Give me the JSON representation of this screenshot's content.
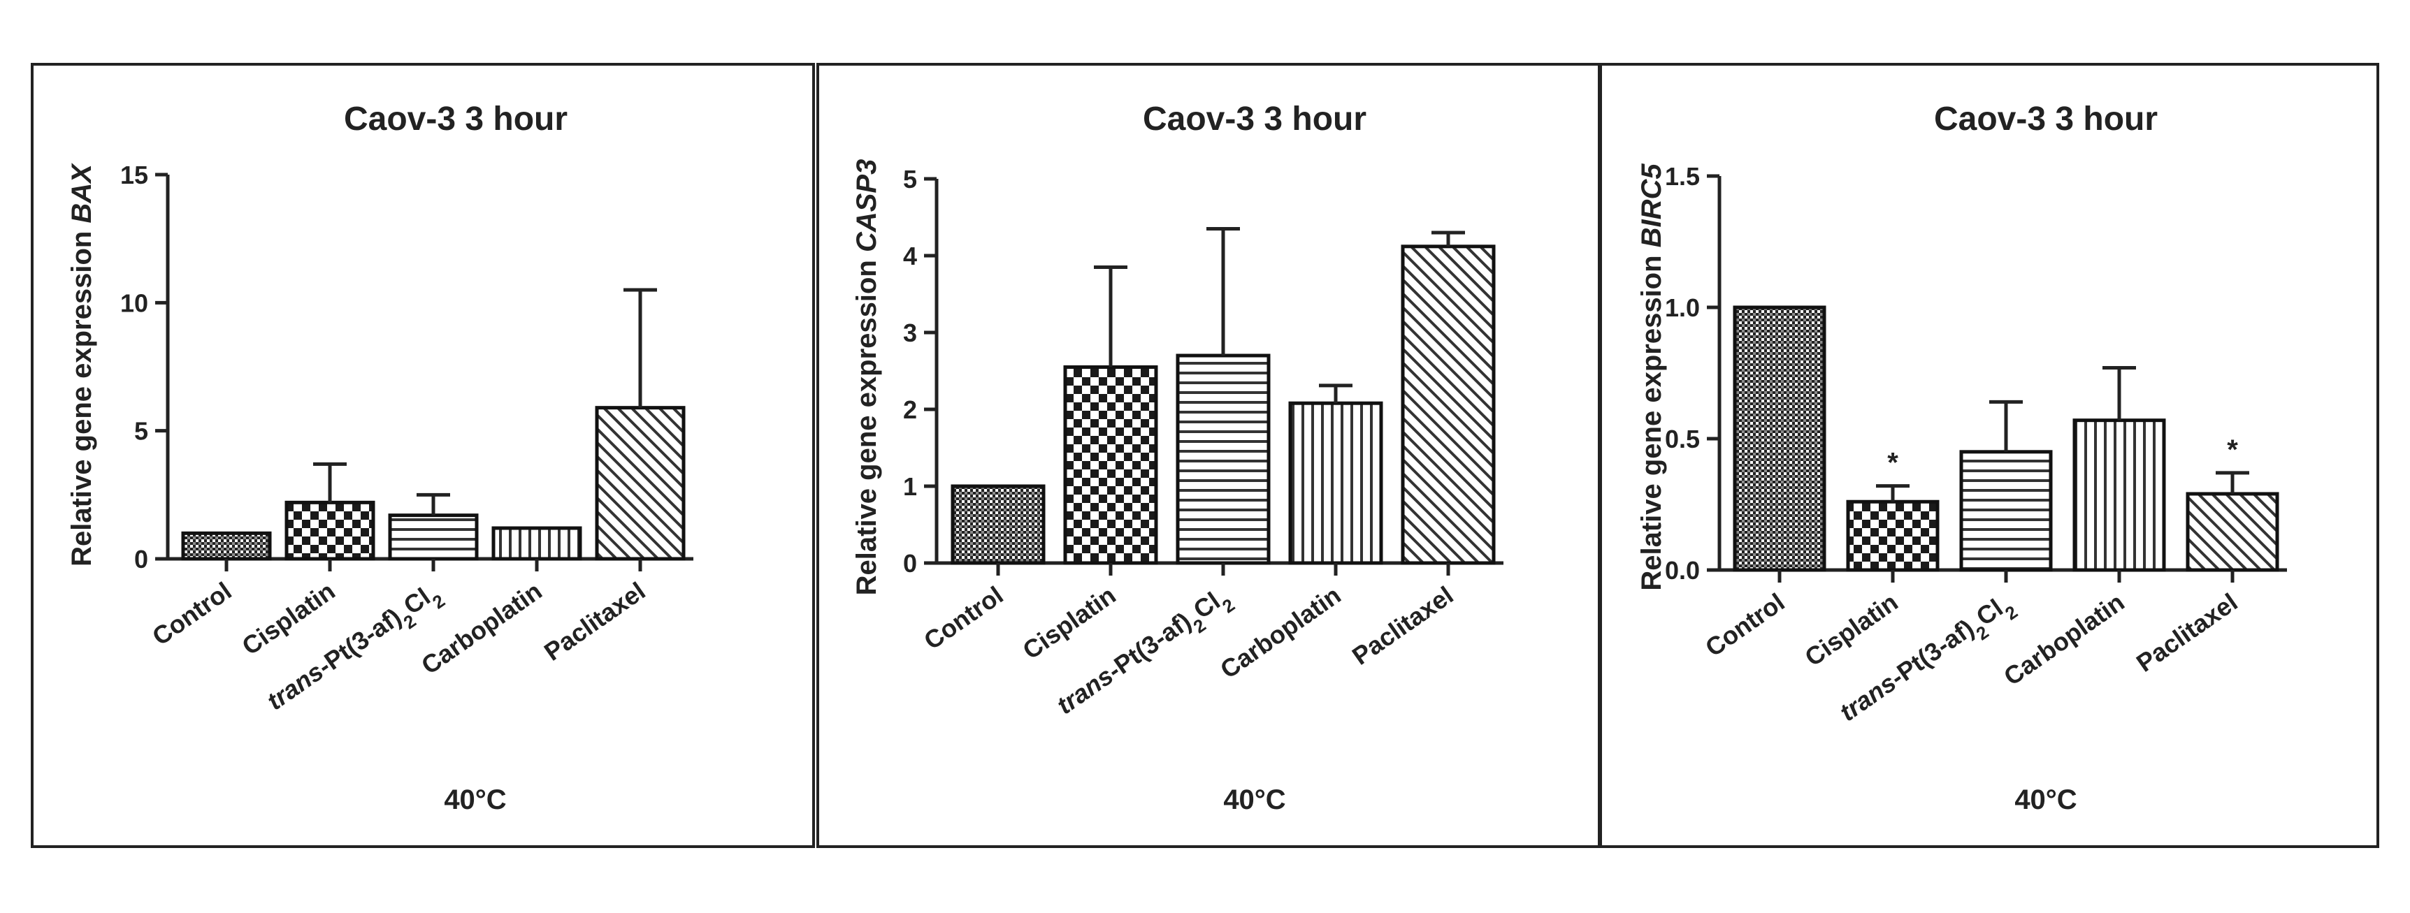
{
  "colors": {
    "ink": "#222222",
    "bar_outline": "#111111",
    "background": "#ffffff"
  },
  "chart_data": [
    {
      "type": "bar",
      "title": "Caov-3 3 hour",
      "ylabel_prefix": "Relative gene expression ",
      "ylabel_gene": "BAX",
      "xlabel": "40°C",
      "categories": [
        "Control",
        "Cisplatin",
        "trans-Pt(3-af)2Cl2",
        "Carboplatin",
        "Paclitaxel"
      ],
      "category_parts": [
        [
          "Control"
        ],
        [
          "Cisplatin"
        ],
        [
          "trans",
          "-Pt(3-af)",
          "2",
          "Cl",
          "2"
        ],
        [
          "Carboplatin"
        ],
        [
          "Paclitaxel"
        ]
      ],
      "patterns": [
        "dense",
        "checker",
        "hstripe",
        "vstripe",
        "diag"
      ],
      "values": [
        1.0,
        2.2,
        1.7,
        1.2,
        5.9
      ],
      "errors": [
        0.0,
        1.5,
        0.8,
        0.0,
        4.6
      ],
      "significance": [
        "",
        "",
        "",
        "",
        ""
      ],
      "ylim": [
        0,
        15
      ],
      "yticks": [
        0,
        5,
        10,
        15
      ],
      "ytick_labels": [
        "0",
        "5",
        "10",
        "15"
      ]
    },
    {
      "type": "bar",
      "title": "Caov-3 3 hour",
      "ylabel_prefix": "Relative gene expression ",
      "ylabel_gene": "CASP3",
      "xlabel": "40°C",
      "categories": [
        "Control",
        "Cisplatin",
        "trans-Pt(3-af)2Cl2",
        "Carboplatin",
        "Paclitaxel"
      ],
      "category_parts": [
        [
          "Control"
        ],
        [
          "Cisplatin"
        ],
        [
          "trans",
          "-Pt(3-af)",
          "2",
          "Cl",
          "2"
        ],
        [
          "Carboplatin"
        ],
        [
          "Paclitaxel"
        ]
      ],
      "patterns": [
        "dense",
        "checker",
        "hstripe",
        "vstripe",
        "diag"
      ],
      "values": [
        1.0,
        2.55,
        2.7,
        2.08,
        4.12
      ],
      "errors": [
        0.0,
        1.3,
        1.65,
        0.23,
        0.18
      ],
      "significance": [
        "",
        "",
        "",
        "",
        ""
      ],
      "ylim": [
        0,
        5
      ],
      "yticks": [
        0,
        1,
        2,
        3,
        4,
        5
      ],
      "ytick_labels": [
        "0",
        "1",
        "2",
        "3",
        "4",
        "5"
      ]
    },
    {
      "type": "bar",
      "title": "Caov-3 3 hour",
      "ylabel_prefix": "Relative gene expression ",
      "ylabel_gene": "BIRC5",
      "xlabel": "40°C",
      "categories": [
        "Control",
        "Cisplatin",
        "trans-Pt(3-af)2Cl2",
        "Carboplatin",
        "Paclitaxel"
      ],
      "category_parts": [
        [
          "Control"
        ],
        [
          "Cisplatin"
        ],
        [
          "trans",
          "-Pt(3-af)",
          "2",
          "Cl",
          "2"
        ],
        [
          "Carboplatin"
        ],
        [
          "Paclitaxel"
        ]
      ],
      "patterns": [
        "dense",
        "checker",
        "hstripe",
        "vstripe",
        "diag"
      ],
      "values": [
        1.0,
        0.26,
        0.45,
        0.57,
        0.29
      ],
      "errors": [
        0.0,
        0.06,
        0.19,
        0.2,
        0.08
      ],
      "significance": [
        "",
        "*",
        "",
        "",
        "*"
      ],
      "ylim": [
        0,
        1.5
      ],
      "yticks": [
        0,
        0.5,
        1.0,
        1.5
      ],
      "ytick_labels": [
        "0.0",
        "0.5",
        "1.0",
        "1.5"
      ]
    }
  ]
}
